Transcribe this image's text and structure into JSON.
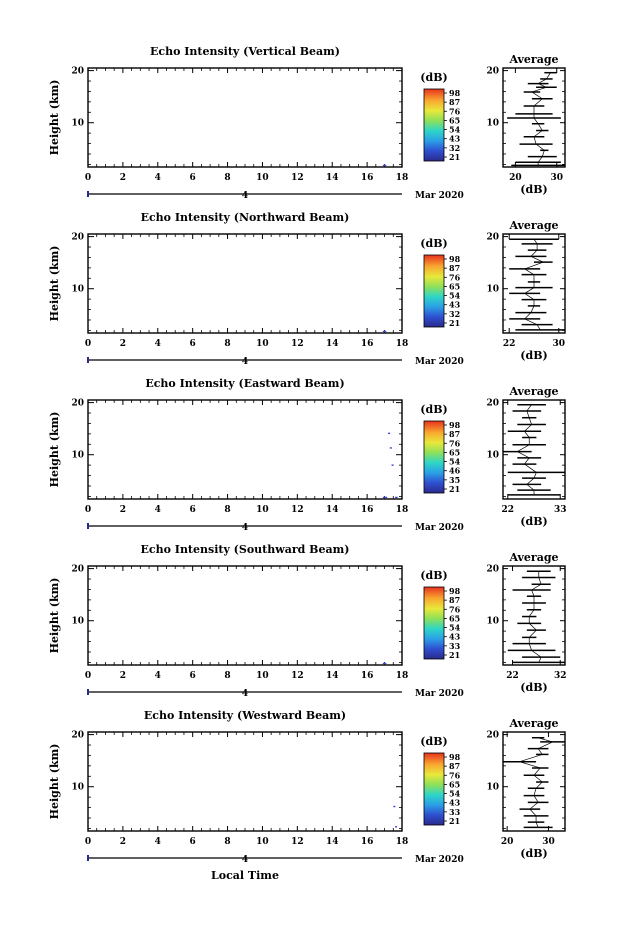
{
  "figure": {
    "date_label": "Mar 2020",
    "day_label": "4",
    "xaxis_label": "Local Time",
    "yaxis_label": "Height (km)",
    "x_ticks": [
      "0",
      "2",
      "4",
      "6",
      "8",
      "10",
      "12",
      "14",
      "16",
      "18"
    ],
    "y_ticks": [
      "20",
      "10"
    ],
    "colorbar_unit": "(dB)",
    "average_title": "Average",
    "average_xlabel": "(dB)"
  },
  "chart_data": [
    {
      "type": "heatmap",
      "title": "Echo Intensity (Vertical Beam)",
      "xlim": [
        0,
        18
      ],
      "ylim": [
        1.5,
        20.5
      ],
      "colorbar_ticks": [
        "98",
        "87",
        "76",
        "65",
        "54",
        "43",
        "32",
        "21"
      ],
      "echoes": [
        [
          16.9,
          1.8,
          0.2
        ]
      ],
      "average": {
        "type": "line",
        "title": "Average",
        "xlabel": "(dB)",
        "xlim": [
          17,
          32
        ],
        "x_ticks": [
          "20",
          "30"
        ],
        "y_ticks": [
          "20",
          "10"
        ],
        "segments": [
          [
            27,
            19.6,
            30
          ],
          [
            26,
            18.4,
            29
          ],
          [
            23,
            17.5,
            28
          ],
          [
            25,
            16.8,
            30
          ],
          [
            22,
            15.9,
            26
          ],
          [
            24,
            14.6,
            29
          ],
          [
            22,
            13.2,
            27
          ],
          [
            20,
            11.7,
            29
          ],
          [
            18,
            10.9,
            31
          ],
          [
            24,
            9.8,
            27
          ],
          [
            25,
            8.5,
            28
          ],
          [
            22,
            7.3,
            27
          ],
          [
            21,
            5.9,
            29
          ],
          [
            26,
            4.7,
            28
          ],
          [
            23,
            3.5,
            30
          ],
          [
            20,
            2.4,
            31
          ],
          [
            19,
            1.8,
            32
          ]
        ]
      }
    },
    {
      "type": "heatmap",
      "title": "Echo Intensity (Northward Beam)",
      "xlim": [
        0,
        18
      ],
      "ylim": [
        1.5,
        20.5
      ],
      "colorbar_ticks": [
        "98",
        "87",
        "76",
        "65",
        "54",
        "43",
        "32",
        "21"
      ],
      "echoes": [
        [
          16.9,
          1.8,
          0.2
        ]
      ],
      "average": {
        "type": "line",
        "title": "Average",
        "xlabel": "(dB)",
        "xlim": [
          21,
          31
        ],
        "x_ticks": [
          "22",
          "30"
        ],
        "y_ticks": [
          "20",
          "10"
        ],
        "segments": [
          [
            22,
            19.5,
            30
          ],
          [
            24,
            18.6,
            29
          ],
          [
            25,
            17.4,
            28
          ],
          [
            23,
            16.2,
            28
          ],
          [
            26,
            15.1,
            29
          ],
          [
            22,
            13.8,
            27
          ],
          [
            24,
            12.7,
            28
          ],
          [
            25,
            11.3,
            27
          ],
          [
            23,
            10.2,
            29
          ],
          [
            22,
            9.1,
            27
          ],
          [
            24,
            7.9,
            28
          ],
          [
            25,
            6.7,
            27
          ],
          [
            23,
            5.4,
            28
          ],
          [
            22,
            4.2,
            27
          ],
          [
            24,
            3.1,
            29
          ],
          [
            23,
            2.1,
            31
          ]
        ]
      }
    },
    {
      "type": "heatmap",
      "title": "Echo Intensity (Eastward Beam)",
      "xlim": [
        0,
        18
      ],
      "ylim": [
        1.5,
        20.5
      ],
      "colorbar_ticks": [
        "98",
        "87",
        "76",
        "65",
        "54",
        "46",
        "35",
        "21"
      ],
      "echoes": [
        [
          17.2,
          14.1,
          0.12
        ],
        [
          17.3,
          11.3,
          0.12
        ],
        [
          17.4,
          8.0,
          0.12
        ],
        [
          16.9,
          1.8,
          0.25
        ],
        [
          17.6,
          1.8,
          0.15
        ]
      ],
      "average": {
        "type": "line",
        "title": "Average",
        "xlabel": "(dB)",
        "xlim": [
          21,
          34
        ],
        "x_ticks": [
          "22",
          "33"
        ],
        "y_ticks": [
          "20",
          "10"
        ],
        "segments": [
          [
            24,
            19.6,
            30
          ],
          [
            23,
            18.4,
            29
          ],
          [
            25,
            17.1,
            28
          ],
          [
            24,
            15.8,
            30
          ],
          [
            22,
            14.5,
            29
          ],
          [
            25,
            13.3,
            28
          ],
          [
            23,
            11.9,
            30
          ],
          [
            21,
            10.6,
            27
          ],
          [
            24,
            9.4,
            29
          ],
          [
            23,
            8.2,
            28
          ],
          [
            22,
            6.6,
            34
          ],
          [
            25,
            5.5,
            30
          ],
          [
            23,
            4.3,
            29
          ],
          [
            24,
            3.2,
            31
          ],
          [
            22,
            2.3,
            33
          ]
        ]
      }
    },
    {
      "type": "heatmap",
      "title": "Echo Intensity (Southward Beam)",
      "xlim": [
        0,
        18
      ],
      "ylim": [
        1.5,
        20.5
      ],
      "colorbar_ticks": [
        "98",
        "87",
        "76",
        "65",
        "54",
        "43",
        "33",
        "21"
      ],
      "echoes": [
        [
          16.9,
          1.8,
          0.2
        ]
      ],
      "average": {
        "type": "line",
        "title": "Average",
        "xlabel": "(dB)",
        "xlim": [
          20,
          33
        ],
        "x_ticks": [
          "22",
          "32"
        ],
        "y_ticks": [
          "20",
          "10"
        ],
        "segments": [
          [
            25,
            19.5,
            30
          ],
          [
            24,
            18.3,
            31
          ],
          [
            26,
            17.0,
            30
          ],
          [
            22,
            15.9,
            30
          ],
          [
            25,
            14.7,
            28
          ],
          [
            24,
            13.4,
            29
          ],
          [
            25,
            12.1,
            28
          ],
          [
            24,
            10.8,
            27
          ],
          [
            23,
            9.5,
            28
          ],
          [
            25,
            8.2,
            29
          ],
          [
            24,
            6.8,
            27
          ],
          [
            22,
            5.6,
            29
          ],
          [
            21,
            4.3,
            31
          ],
          [
            24,
            3.0,
            32
          ],
          [
            22,
            2.0,
            33
          ]
        ]
      }
    },
    {
      "type": "heatmap",
      "title": "Echo Intensity (Westward Beam)",
      "xlim": [
        0,
        18
      ],
      "ylim": [
        1.5,
        20.5
      ],
      "colorbar_ticks": [
        "98",
        "87",
        "76",
        "65",
        "54",
        "43",
        "33",
        "21"
      ],
      "echoes": [
        [
          17.5,
          6.2,
          0.12
        ],
        [
          17.6,
          2.3,
          0.12
        ]
      ],
      "average": {
        "type": "line",
        "title": "Average",
        "xlabel": "(dB)",
        "xlim": [
          19,
          34
        ],
        "x_ticks": [
          "20",
          "30"
        ],
        "y_ticks": [
          "20",
          "10"
        ],
        "segments": [
          [
            26,
            19.4,
            29
          ],
          [
            28,
            18.6,
            34
          ],
          [
            25,
            17.3,
            30
          ],
          [
            27,
            16.2,
            30
          ],
          [
            19,
            14.8,
            27
          ],
          [
            26,
            13.6,
            30
          ],
          [
            24,
            12.2,
            29
          ],
          [
            27,
            10.9,
            30
          ],
          [
            25,
            9.7,
            29
          ],
          [
            24,
            8.3,
            29
          ],
          [
            25,
            7.0,
            30
          ],
          [
            23,
            5.7,
            28
          ],
          [
            24,
            4.4,
            30
          ],
          [
            25,
            3.2,
            29
          ],
          [
            24,
            2.2,
            31
          ]
        ]
      }
    }
  ]
}
